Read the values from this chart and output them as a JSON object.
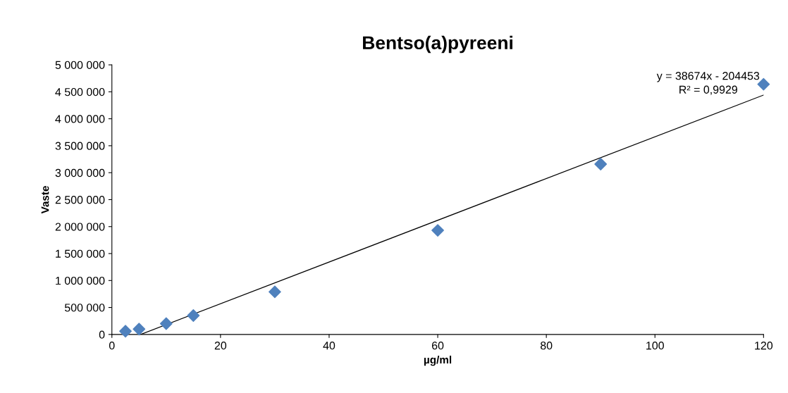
{
  "chart_data": {
    "type": "scatter",
    "title": "Bentso(a)pyreeni",
    "xlabel": "µg/ml",
    "ylabel": "Vaste",
    "series": [
      {
        "color": "#4f81bd",
        "marker": "diamond",
        "x": [
          2.5,
          5,
          10,
          15,
          30,
          60,
          90,
          120
        ],
        "values": [
          60000,
          100000,
          200000,
          350000,
          790000,
          1930000,
          3160000,
          4640000
        ]
      },
      {
        "type": "line",
        "color": "#000000",
        "marker": "none",
        "line_style": "solid",
        "x": [
          5.3,
          120
        ],
        "values": [
          0,
          4440000
        ]
      }
    ],
    "annotations": [
      "y = 38674x - 204453\nR² = 0,9929"
    ],
    "xlim": [
      0,
      120
    ],
    "xticks": [
      0,
      20,
      40,
      60,
      80,
      100,
      120
    ],
    "ylim": [
      0,
      5000000
    ],
    "yticks": [
      {
        "value": 0,
        "label": "0"
      },
      {
        "value": 500000,
        "label": "500 000"
      },
      {
        "value": 1000000,
        "label": "1 000 000"
      },
      {
        "value": 1500000,
        "label": "1 500 000"
      },
      {
        "value": 2000000,
        "label": "2 000 000"
      },
      {
        "value": 2500000,
        "label": "2 500 000"
      },
      {
        "value": 3000000,
        "label": "3 000 000"
      },
      {
        "value": 3500000,
        "label": "3 500 000"
      },
      {
        "value": 4000000,
        "label": "4 000 000"
      },
      {
        "value": 4500000,
        "label": "4 500 000"
      },
      {
        "value": 5000000,
        "label": "5 000 000"
      }
    ],
    "grid": false,
    "legend": false
  }
}
